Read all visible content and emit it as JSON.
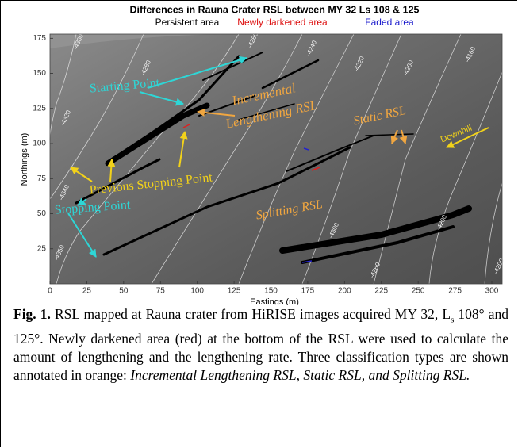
{
  "figure": {
    "title": "Differences in Rauna Crater RSL between MY 32 Ls 108 & 125",
    "legend": [
      {
        "name": "Persistent area",
        "color": "#000000"
      },
      {
        "name": "Newly darkened area",
        "color": "#dd1111"
      },
      {
        "name": "Faded area",
        "color": "#1a1acc"
      }
    ],
    "xlabel": "Eastings (m)",
    "ylabel": "Northings (m)",
    "xlim": [
      0,
      307
    ],
    "ylim": [
      0,
      178
    ],
    "xticks": [
      0,
      25,
      50,
      75,
      100,
      125,
      150,
      175,
      200,
      225,
      250,
      275,
      300
    ],
    "yticks": [
      25,
      50,
      75,
      100,
      125,
      150,
      175
    ],
    "contour_labels": [
      "-4300",
      "-4280",
      "-4260",
      "-4240",
      "-4220",
      "-4200",
      "-4160",
      "-4320",
      "-4340",
      "-4350",
      "-4300",
      "-4260",
      "-4200",
      "-4200"
    ],
    "annotations": [
      {
        "text": "Starting Point",
        "color": "#2ed6d6"
      },
      {
        "text": "Incremental",
        "color": "#f0a640"
      },
      {
        "text": "Lengthening RSL",
        "color": "#f0a640"
      },
      {
        "text": "Static RSL",
        "color": "#f0a640"
      },
      {
        "text": "Downhill",
        "color": "#f2d21a"
      },
      {
        "text": "Previous Stopping Point",
        "color": "#f2d21a"
      },
      {
        "text": "Stopping Point",
        "color": "#2ed6d6"
      },
      {
        "text": "Splitting RSL",
        "color": "#f0a640"
      }
    ]
  },
  "caption": {
    "label": "Fig. 1.",
    "text_1": " RSL mapped at Rauna crater from HiRISE images acquired MY 32, L",
    "subscript": "s",
    "text_2": " 108° and 125°. Newly darkened area (red) at the bottom of the RSL were used to calculate the amount of lengthening and the lengthening rate. Three classification types are shown annotated in orange: ",
    "italic_1": "Incremental Lengthening RSL",
    "text_3": ", ",
    "italic_2": "Static RSL, and Splitting RSL."
  }
}
